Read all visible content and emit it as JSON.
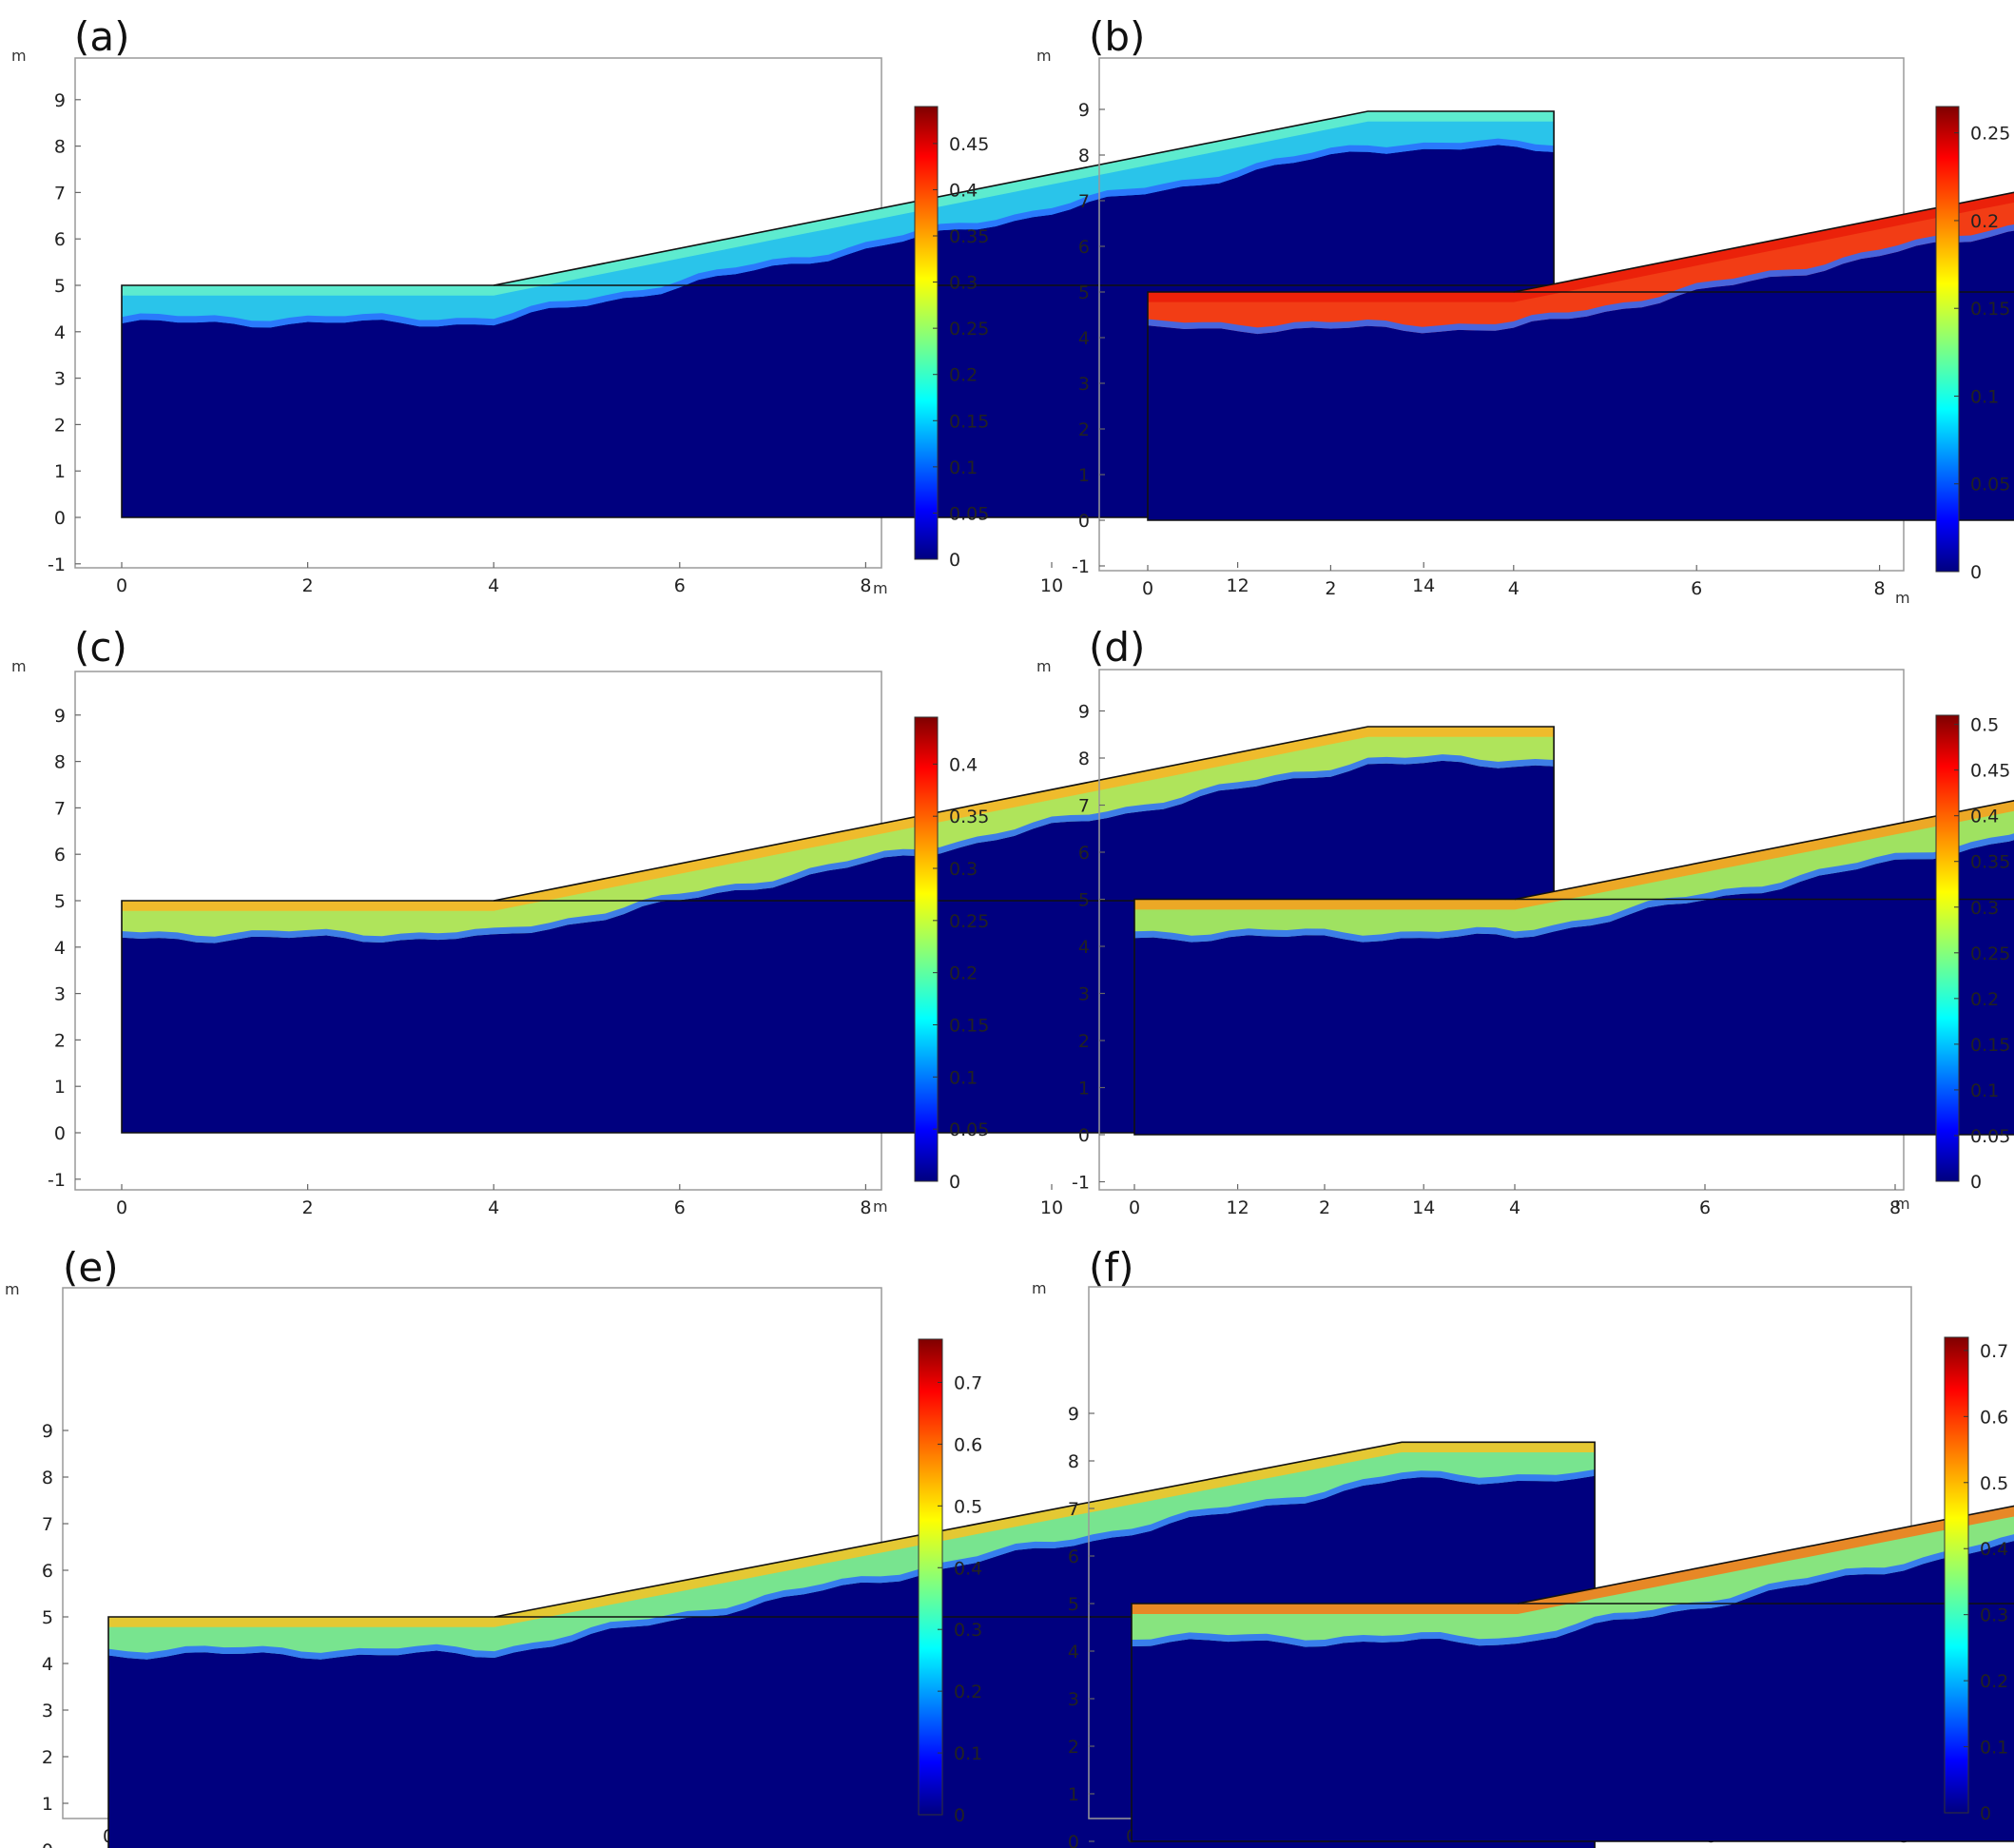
{
  "figure": {
    "axis_unit": "m",
    "panels": [
      {
        "label": "(a)",
        "colorbar_ticks": [
          "0",
          "0.05",
          "0.1",
          "0.15",
          "0.2",
          "0.25",
          "0.3",
          "0.35",
          "0.4",
          "0.45"
        ],
        "colorbar_max": 0.49,
        "band_color": "#2ccff0",
        "surface_color": "#6af5c8"
      },
      {
        "label": "(b)",
        "colorbar_ticks": [
          "0",
          "0.05",
          "0.1",
          "0.15",
          "0.2",
          "0.25"
        ],
        "colorbar_max": 0.265,
        "band_color": "#ff4010",
        "surface_color": "#e81a08"
      },
      {
        "label": "(c)",
        "colorbar_ticks": [
          "0",
          "0.05",
          "0.1",
          "0.15",
          "0.2",
          "0.25",
          "0.3",
          "0.35",
          "0.4"
        ],
        "colorbar_max": 0.445,
        "band_color": "#b8f05a",
        "surface_color": "#ffb020"
      },
      {
        "label": "(d)",
        "colorbar_ticks": [
          "0",
          "0.05",
          "0.1",
          "0.15",
          "0.2",
          "0.25",
          "0.3",
          "0.35",
          "0.4",
          "0.45",
          "0.5"
        ],
        "colorbar_max": 0.51,
        "band_color": "#a8ee60",
        "surface_color": "#ff9a18"
      },
      {
        "label": "(e)",
        "colorbar_ticks": [
          "0",
          "0.1",
          "0.2",
          "0.3",
          "0.4",
          "0.5",
          "0.6",
          "0.7"
        ],
        "colorbar_max": 0.77,
        "band_color": "#7ef090",
        "surface_color": "#ffc01c"
      },
      {
        "label": "(f)",
        "colorbar_ticks": [
          "0",
          "0.1",
          "0.2",
          "0.3",
          "0.4",
          "0.5",
          "0.6",
          "0.7"
        ],
        "colorbar_max": 0.72,
        "band_color": "#8ef080",
        "surface_color": "#ff7010"
      }
    ]
  },
  "chart_data": {
    "type": "heatmap",
    "x_ticks": [
      0,
      2,
      4,
      6,
      8,
      10,
      12,
      14
    ],
    "y_ticks": [
      -1,
      0,
      1,
      2,
      3,
      4,
      5,
      6,
      7,
      8,
      9
    ],
    "xlim": [
      -1,
      16.5
    ],
    "ylim": [
      -1.2,
      9.8
    ],
    "domain_outline": {
      "x": [
        0,
        4,
        13.4,
        15.4,
        15.4,
        0
      ],
      "y": [
        5,
        5,
        8.75,
        8.75,
        0,
        0
      ]
    },
    "interface_line_y": 5,
    "colormap": "jet",
    "panels": [
      {
        "label": "(a)",
        "colorbar_range": [
          0,
          0.49
        ]
      },
      {
        "label": "(b)",
        "colorbar_range": [
          0,
          0.265
        ]
      },
      {
        "label": "(c)",
        "colorbar_range": [
          0,
          0.445
        ]
      },
      {
        "label": "(d)",
        "colorbar_range": [
          0,
          0.51
        ]
      },
      {
        "label": "(e)",
        "colorbar_range": [
          0,
          0.77
        ]
      },
      {
        "label": "(f)",
        "colorbar_range": [
          0,
          0.72
        ]
      }
    ]
  }
}
